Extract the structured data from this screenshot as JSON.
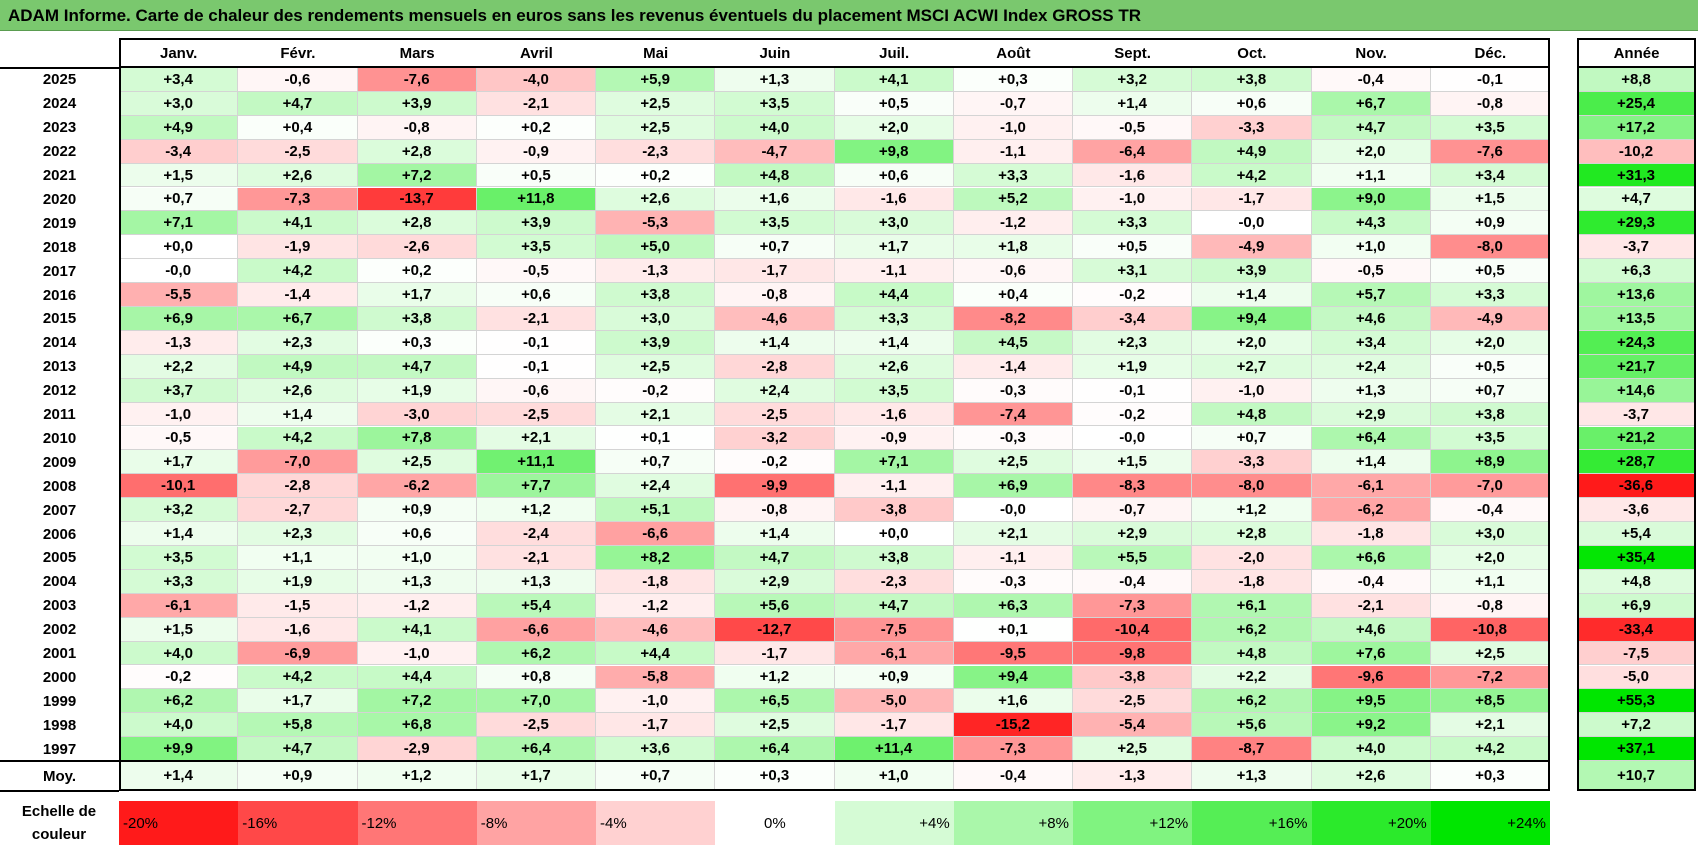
{
  "title": "ADAM Informe. Carte de chaleur des rendements mensuels en euros sans les revenus éventuels du placement MSCI ACWI Index GROSS TR",
  "chart_data": {
    "type": "heatmap",
    "title": "ADAM Informe. Carte de chaleur des rendements mensuels en euros sans les revenus éventuels du placement MSCI ACWI Index GROSS TR",
    "months": [
      "Janv.",
      "Févr.",
      "Mars",
      "Avril",
      "Mai",
      "Juin",
      "Juil.",
      "Août",
      "Sept.",
      "Oct.",
      "Nov.",
      "Déc."
    ],
    "annual_label": "Année",
    "rows": [
      {
        "year": "2025",
        "values": [
          "+3,4",
          "-0,6",
          "-7,6",
          "-4,0",
          "+5,9",
          "+1,3",
          "+4,1",
          "+0,3",
          "+3,2",
          "+3,8",
          "-0,4",
          "-0,1"
        ],
        "annual": "+8,8"
      },
      {
        "year": "2024",
        "values": [
          "+3,0",
          "+4,7",
          "+3,9",
          "-2,1",
          "+2,5",
          "+3,5",
          "+0,5",
          "-0,7",
          "+1,4",
          "+0,6",
          "+6,7",
          "-0,8"
        ],
        "annual": "+25,4"
      },
      {
        "year": "2023",
        "values": [
          "+4,9",
          "+0,4",
          "-0,8",
          "+0,2",
          "+2,5",
          "+4,0",
          "+2,0",
          "-1,0",
          "-0,5",
          "-3,3",
          "+4,7",
          "+3,5"
        ],
        "annual": "+17,2"
      },
      {
        "year": "2022",
        "values": [
          "-3,4",
          "-2,5",
          "+2,8",
          "-0,9",
          "-2,3",
          "-4,7",
          "+9,8",
          "-1,1",
          "-6,4",
          "+4,9",
          "+2,0",
          "-7,6"
        ],
        "annual": "-10,2"
      },
      {
        "year": "2021",
        "values": [
          "+1,5",
          "+2,6",
          "+7,2",
          "+0,5",
          "+0,2",
          "+4,8",
          "+0,6",
          "+3,3",
          "-1,6",
          "+4,2",
          "+1,1",
          "+3,4"
        ],
        "annual": "+31,3"
      },
      {
        "year": "2020",
        "values": [
          "+0,7",
          "-7,3",
          "-13,7",
          "+11,8",
          "+2,6",
          "+1,6",
          "-1,6",
          "+5,2",
          "-1,0",
          "-1,7",
          "+9,0",
          "+1,5"
        ],
        "annual": "+4,7"
      },
      {
        "year": "2019",
        "values": [
          "+7,1",
          "+4,1",
          "+2,8",
          "+3,9",
          "-5,3",
          "+3,5",
          "+3,0",
          "-1,2",
          "+3,3",
          "-0,0",
          "+4,3",
          "+0,9"
        ],
        "annual": "+29,3"
      },
      {
        "year": "2018",
        "values": [
          "+0,0",
          "-1,9",
          "-2,6",
          "+3,5",
          "+5,0",
          "+0,7",
          "+1,7",
          "+1,8",
          "+0,5",
          "-4,9",
          "+1,0",
          "-8,0"
        ],
        "annual": "-3,7"
      },
      {
        "year": "2017",
        "values": [
          "-0,0",
          "+4,2",
          "+0,2",
          "-0,5",
          "-1,3",
          "-1,7",
          "-1,1",
          "-0,6",
          "+3,1",
          "+3,9",
          "-0,5",
          "+0,5"
        ],
        "annual": "+6,3"
      },
      {
        "year": "2016",
        "values": [
          "-5,5",
          "-1,4",
          "+1,7",
          "+0,6",
          "+3,8",
          "-0,8",
          "+4,4",
          "+0,4",
          "-0,2",
          "+1,4",
          "+5,7",
          "+3,3"
        ],
        "annual": "+13,6"
      },
      {
        "year": "2015",
        "values": [
          "+6,9",
          "+6,7",
          "+3,8",
          "-2,1",
          "+3,0",
          "-4,6",
          "+3,3",
          "-8,2",
          "-3,4",
          "+9,4",
          "+4,6",
          "-4,9"
        ],
        "annual": "+13,5"
      },
      {
        "year": "2014",
        "values": [
          "-1,3",
          "+2,3",
          "+0,3",
          "-0,1",
          "+3,9",
          "+1,4",
          "+1,4",
          "+4,5",
          "+2,3",
          "+2,0",
          "+3,4",
          "+2,0"
        ],
        "annual": "+24,3"
      },
      {
        "year": "2013",
        "values": [
          "+2,2",
          "+4,9",
          "+4,7",
          "-0,1",
          "+2,5",
          "-2,8",
          "+2,6",
          "-1,4",
          "+1,9",
          "+2,7",
          "+2,4",
          "+0,5"
        ],
        "annual": "+21,7"
      },
      {
        "year": "2012",
        "values": [
          "+3,7",
          "+2,6",
          "+1,9",
          "-0,6",
          "-0,2",
          "+2,4",
          "+3,5",
          "-0,3",
          "-0,1",
          "-1,0",
          "+1,3",
          "+0,7"
        ],
        "annual": "+14,6"
      },
      {
        "year": "2011",
        "values": [
          "-1,0",
          "+1,4",
          "-3,0",
          "-2,5",
          "+2,1",
          "-2,5",
          "-1,6",
          "-7,4",
          "-0,2",
          "+4,8",
          "+2,9",
          "+3,8"
        ],
        "annual": "-3,7"
      },
      {
        "year": "2010",
        "values": [
          "-0,5",
          "+4,2",
          "+7,8",
          "+2,1",
          "+0,1",
          "-3,2",
          "-0,9",
          "-0,3",
          "-0,0",
          "+0,7",
          "+6,4",
          "+3,5"
        ],
        "annual": "+21,2"
      },
      {
        "year": "2009",
        "values": [
          "+1,7",
          "-7,0",
          "+2,5",
          "+11,1",
          "+0,7",
          "-0,2",
          "+7,1",
          "+2,5",
          "+1,5",
          "-3,3",
          "+1,4",
          "+8,9"
        ],
        "annual": "+28,7"
      },
      {
        "year": "2008",
        "values": [
          "-10,1",
          "-2,8",
          "-6,2",
          "+7,7",
          "+2,4",
          "-9,9",
          "-1,1",
          "+6,9",
          "-8,3",
          "-8,0",
          "-6,1",
          "-7,0"
        ],
        "annual": "-36,6"
      },
      {
        "year": "2007",
        "values": [
          "+3,2",
          "-2,7",
          "+0,9",
          "+1,2",
          "+5,1",
          "-0,8",
          "-3,8",
          "-0,0",
          "-0,7",
          "+1,2",
          "-6,2",
          "-0,4"
        ],
        "annual": "-3,6"
      },
      {
        "year": "2006",
        "values": [
          "+1,4",
          "+2,3",
          "+0,6",
          "-2,4",
          "-6,6",
          "+1,4",
          "+0,0",
          "+2,1",
          "+2,9",
          "+2,8",
          "-1,8",
          "+3,0"
        ],
        "annual": "+5,4"
      },
      {
        "year": "2005",
        "values": [
          "+3,5",
          "+1,1",
          "+1,0",
          "-2,1",
          "+8,2",
          "+4,7",
          "+3,8",
          "-1,1",
          "+5,5",
          "-2,0",
          "+6,6",
          "+2,0"
        ],
        "annual": "+35,4"
      },
      {
        "year": "2004",
        "values": [
          "+3,3",
          "+1,9",
          "+1,3",
          "+1,3",
          "-1,8",
          "+2,9",
          "-2,3",
          "-0,3",
          "-0,4",
          "-1,8",
          "-0,4",
          "+1,1"
        ],
        "annual": "+4,8"
      },
      {
        "year": "2003",
        "values": [
          "-6,1",
          "-1,5",
          "-1,2",
          "+5,4",
          "-1,2",
          "+5,6",
          "+4,7",
          "+6,3",
          "-7,3",
          "+6,1",
          "-2,1",
          "-0,8"
        ],
        "annual": "+6,9"
      },
      {
        "year": "2002",
        "values": [
          "+1,5",
          "-1,6",
          "+4,1",
          "-6,6",
          "-4,6",
          "-12,7",
          "-7,5",
          "+0,1",
          "-10,4",
          "+6,2",
          "+4,6",
          "-10,8"
        ],
        "annual": "-33,4"
      },
      {
        "year": "2001",
        "values": [
          "+4,0",
          "-6,9",
          "-1,0",
          "+6,2",
          "+4,4",
          "-1,7",
          "-6,1",
          "-9,5",
          "-9,8",
          "+4,8",
          "+7,6",
          "+2,5"
        ],
        "annual": "-7,5"
      },
      {
        "year": "2000",
        "values": [
          "-0,2",
          "+4,2",
          "+4,4",
          "+0,8",
          "-5,8",
          "+1,2",
          "+0,9",
          "+9,4",
          "-3,8",
          "+2,2",
          "-9,6",
          "-7,2"
        ],
        "annual": "-5,0"
      },
      {
        "year": "1999",
        "values": [
          "+6,2",
          "+1,7",
          "+7,2",
          "+7,0",
          "-1,0",
          "+6,5",
          "-5,0",
          "+1,6",
          "-2,5",
          "+6,2",
          "+9,5",
          "+8,5"
        ],
        "annual": "+55,3"
      },
      {
        "year": "1998",
        "values": [
          "+4,0",
          "+5,8",
          "+6,8",
          "-2,5",
          "-1,7",
          "+2,5",
          "-1,7",
          "-15,2",
          "-5,4",
          "+5,6",
          "+9,2",
          "+2,1"
        ],
        "annual": "+7,2"
      },
      {
        "year": "1997",
        "values": [
          "+9,9",
          "+4,7",
          "-2,9",
          "+6,4",
          "+3,6",
          "+6,4",
          "+11,4",
          "-7,3",
          "+2,5",
          "-8,7",
          "+4,0",
          "+4,2"
        ],
        "annual": "+37,1"
      }
    ],
    "average": {
      "label": "Moy.",
      "values": [
        "+1,4",
        "+0,9",
        "+1,2",
        "+1,7",
        "+0,7",
        "+0,3",
        "+1,0",
        "-0,4",
        "-1,3",
        "+1,3",
        "+2,6",
        "+0,3"
      ],
      "annual": "+10,7"
    },
    "scale": {
      "label_line1": "Echelle de",
      "label_line2": "couleur",
      "steps": [
        {
          "label": "-20%",
          "value": -20
        },
        {
          "label": "-16%",
          "value": -16
        },
        {
          "label": "-12%",
          "value": -12
        },
        {
          "label": "-8%",
          "value": -8
        },
        {
          "label": "-4%",
          "value": -4
        },
        {
          "label": "0%",
          "value": 0
        },
        {
          "label": "+4%",
          "value": 4
        },
        {
          "label": "+8%",
          "value": 8
        },
        {
          "label": "+12%",
          "value": 12
        },
        {
          "label": "+16%",
          "value": 16
        },
        {
          "label": "+20%",
          "value": 20
        },
        {
          "label": "+24%",
          "value": 24
        }
      ]
    },
    "colors": {
      "negative_max": "#ff1a1a",
      "neutral": "#ffffff",
      "positive_max": "#00e600",
      "title_bar": "#7ac86e"
    }
  }
}
